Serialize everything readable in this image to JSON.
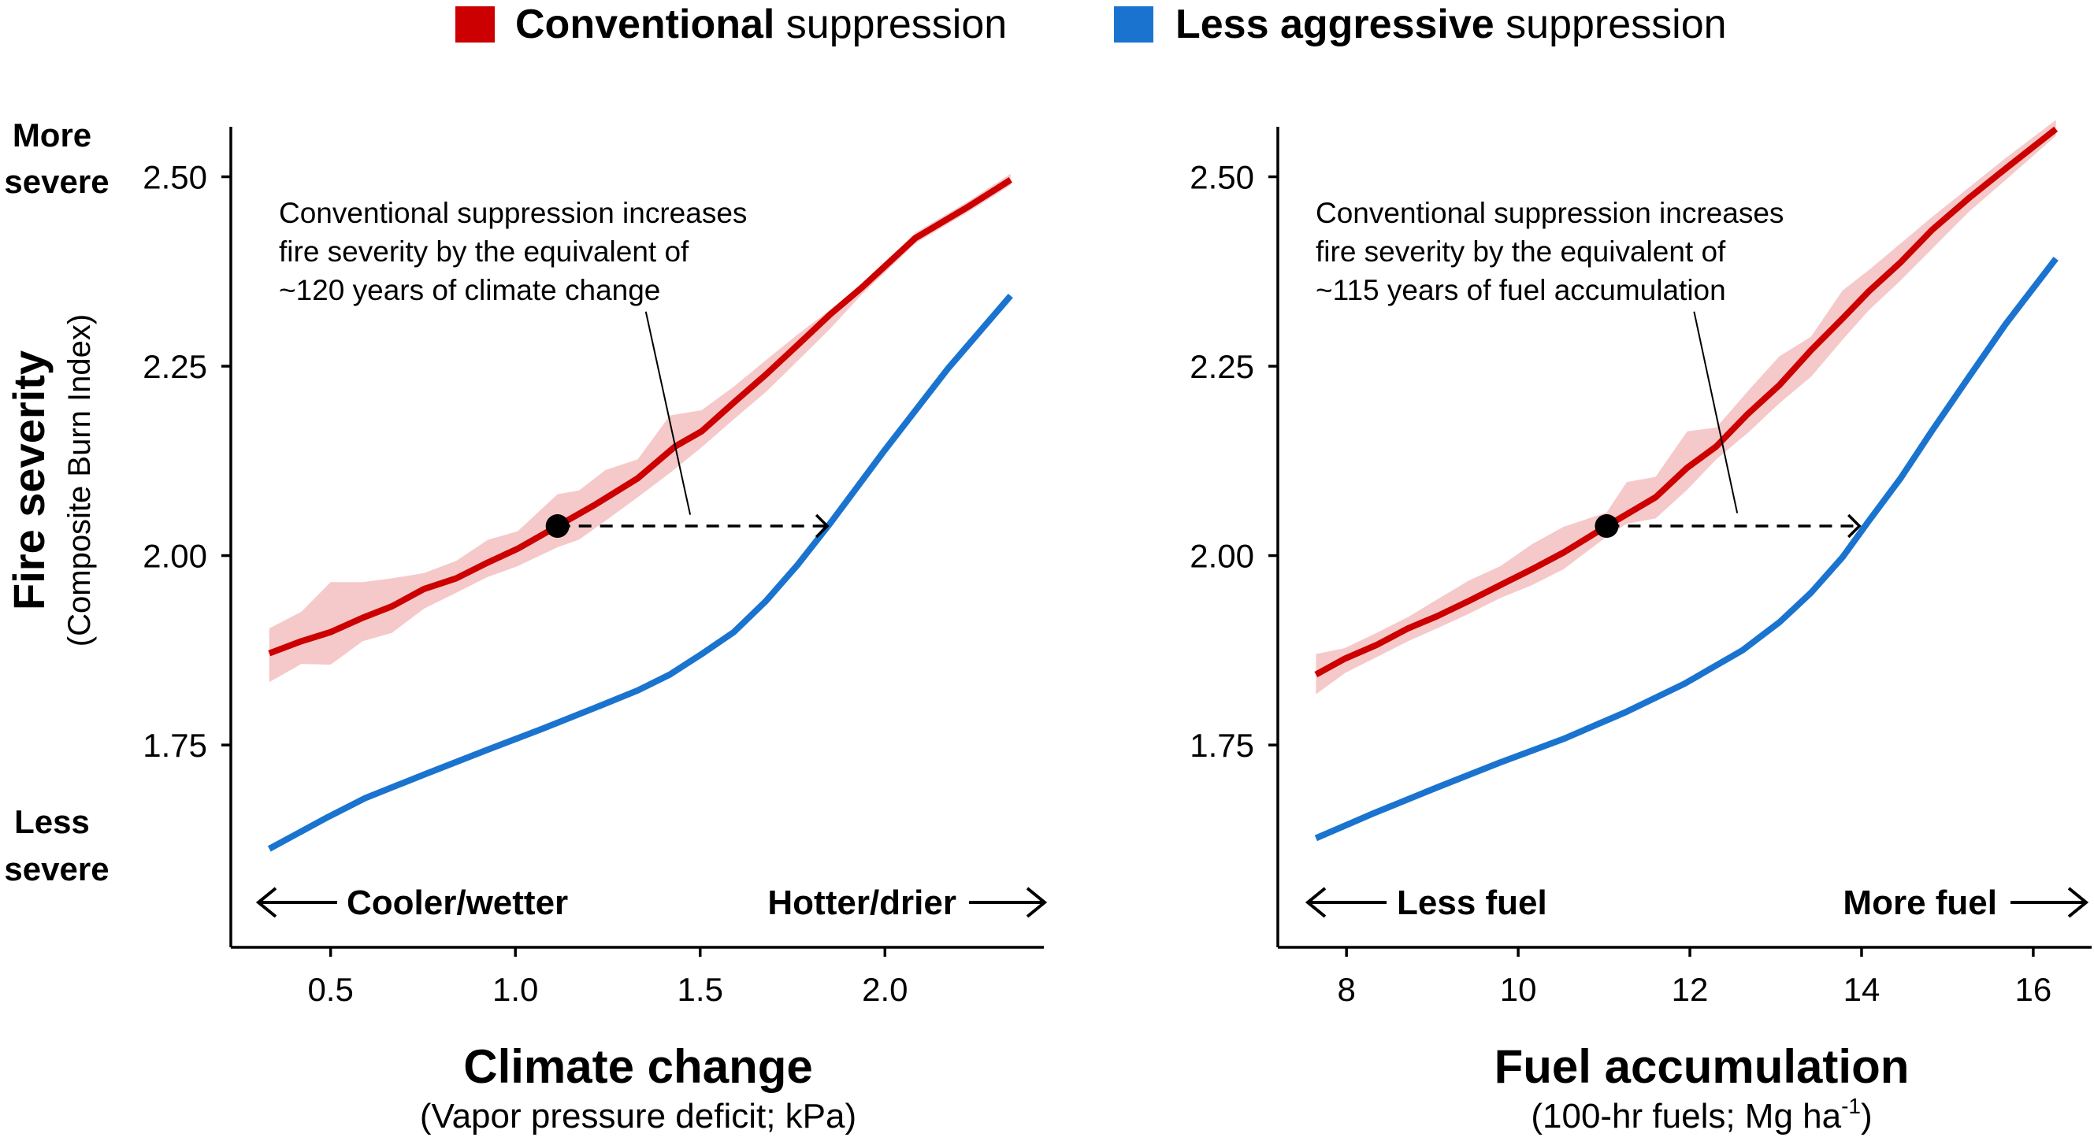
{
  "legend": {
    "items": [
      {
        "bold": "Conventional",
        "rest": " suppression",
        "color": "#cc0000"
      },
      {
        "bold": "Less aggressive",
        "rest": " suppression",
        "color": "#1a74cf"
      }
    ]
  },
  "y_labels": {
    "more": [
      "More",
      "severe"
    ],
    "less": [
      "Less",
      "severe"
    ],
    "title": "Fire severity",
    "subtitle": "(Composite Burn Index)"
  },
  "colors": {
    "band": "#f5c9c9",
    "red": "#cc0000",
    "blue": "#1a74cf",
    "ink": "#000000"
  },
  "chart_data": [
    {
      "type": "line",
      "xlabel": "Climate change",
      "xsublabel": "(Vapor pressure deficit; kPa)",
      "xlim": [
        0.23,
        2.43
      ],
      "ylim": [
        1.483,
        2.566
      ],
      "xticks": [
        0.5,
        1.0,
        1.5,
        2.0
      ],
      "xtick_labels": [
        "0.5",
        "1.0",
        "1.5",
        "2.0"
      ],
      "yticks": [
        1.75,
        2.0,
        2.25,
        2.5
      ],
      "ytick_labels": [
        "1.75",
        "2.00",
        "2.25",
        "2.50"
      ],
      "direction_labels": {
        "left": "Cooler/wetter",
        "right": "Hotter/drier"
      },
      "annotation": [
        "Conventional suppression increases",
        "fire severity by the equivalent of",
        "~120 years of climate change"
      ],
      "series": [
        {
          "name": "Conventional suppression",
          "color": "#cc0000",
          "x": [
            0.334,
            0.421,
            0.5,
            0.587,
            0.666,
            0.753,
            0.84,
            0.926,
            1.006,
            1.114,
            1.215,
            1.331,
            1.432,
            1.504,
            1.591,
            1.678,
            1.764,
            1.851,
            1.938,
            2.082,
            2.227,
            2.34
          ],
          "y": [
            1.871,
            1.887,
            1.899,
            1.918,
            1.933,
            1.956,
            1.97,
            1.991,
            2.009,
            2.039,
            2.067,
            2.102,
            2.144,
            2.164,
            2.202,
            2.239,
            2.278,
            2.318,
            2.354,
            2.419,
            2.461,
            2.496
          ],
          "band": {
            "x": [
              0.334,
              0.421,
              0.5,
              0.587,
              0.666,
              0.753,
              0.84,
              0.926,
              1.006,
              1.114,
              1.172,
              1.244,
              1.331,
              1.418,
              1.504,
              1.591,
              1.678,
              1.764,
              1.851,
              1.938,
              2.082,
              2.227,
              2.34
            ],
            "lower": [
              1.833,
              1.857,
              1.856,
              1.887,
              1.898,
              1.93,
              1.951,
              1.972,
              1.986,
              2.011,
              2.021,
              2.046,
              2.077,
              2.109,
              2.143,
              2.18,
              2.216,
              2.257,
              2.299,
              2.345,
              2.412,
              2.454,
              2.489
            ],
            "upper": [
              1.904,
              1.926,
              1.965,
              1.965,
              1.97,
              1.977,
              1.993,
              2.021,
              2.032,
              2.081,
              2.086,
              2.113,
              2.127,
              2.185,
              2.192,
              2.223,
              2.258,
              2.292,
              2.324,
              2.356,
              2.426,
              2.468,
              2.504
            ]
          }
        },
        {
          "name": "Less aggressive suppression",
          "color": "#1a74cf",
          "x": [
            0.334,
            0.493,
            0.594,
            0.753,
            0.926,
            1.071,
            1.215,
            1.331,
            1.418,
            1.504,
            1.591,
            1.678,
            1.764,
            1.851,
            1.996,
            2.169,
            2.34
          ],
          "y": [
            1.613,
            1.655,
            1.68,
            1.711,
            1.744,
            1.771,
            1.799,
            1.822,
            1.843,
            1.87,
            1.899,
            1.94,
            1.988,
            2.042,
            2.137,
            2.246,
            2.343
          ]
        }
      ],
      "marker": {
        "x": 1.114,
        "y": 2.039
      },
      "arrow_to_x": 1.844,
      "leader": {
        "from": [
          1.353,
          2.322
        ],
        "to": [
          1.473,
          2.054
        ]
      }
    },
    {
      "type": "line",
      "xlabel": "Fuel accumulation",
      "xsublabel_parts": [
        "(100-hr fuels; Mg ha",
        "-1",
        ")"
      ],
      "xlim": [
        7.2,
        16.68
      ],
      "ylim": [
        1.483,
        2.566
      ],
      "xticks": [
        8,
        10,
        12,
        14,
        16
      ],
      "xtick_labels": [
        "8",
        "10",
        "12",
        "14",
        "16"
      ],
      "yticks": [
        1.75,
        2.0,
        2.25,
        2.5
      ],
      "ytick_labels": [
        "1.75",
        "2.00",
        "2.25",
        "2.50"
      ],
      "direction_labels": {
        "left": "Less fuel",
        "right": "More fuel"
      },
      "annotation": [
        "Conventional suppression increases",
        "fire severity by the equivalent of",
        "~115 years of fuel accumulation"
      ],
      "series": [
        {
          "name": "Conventional suppression",
          "color": "#cc0000",
          "x": [
            7.644,
            7.982,
            8.35,
            8.718,
            9.055,
            9.423,
            9.791,
            10.16,
            10.528,
            11.031,
            11.601,
            11.969,
            12.307,
            12.675,
            13.043,
            13.411,
            13.779,
            14.086,
            14.454,
            14.822,
            15.252,
            15.681,
            16.264
          ],
          "y": [
            1.843,
            1.864,
            1.882,
            1.904,
            1.92,
            1.94,
            1.961,
            1.982,
            2.004,
            2.039,
            2.077,
            2.116,
            2.144,
            2.187,
            2.225,
            2.271,
            2.313,
            2.349,
            2.387,
            2.43,
            2.472,
            2.511,
            2.563
          ],
          "band": {
            "x": [
              7.644,
              7.982,
              8.35,
              8.718,
              9.055,
              9.423,
              9.791,
              10.16,
              10.528,
              11.031,
              11.264,
              11.601,
              11.969,
              12.307,
              12.675,
              13.043,
              13.411,
              13.779,
              14.086,
              14.454,
              14.822,
              15.252,
              15.681,
              16.264
            ],
            "lower": [
              1.817,
              1.845,
              1.866,
              1.887,
              1.904,
              1.923,
              1.944,
              1.961,
              1.982,
              2.025,
              2.042,
              2.049,
              2.087,
              2.127,
              2.162,
              2.201,
              2.236,
              2.285,
              2.324,
              2.363,
              2.405,
              2.454,
              2.496,
              2.554
            ],
            "upper": [
              1.87,
              1.878,
              1.898,
              1.919,
              1.942,
              1.967,
              1.986,
              2.015,
              2.038,
              2.057,
              2.097,
              2.104,
              2.164,
              2.169,
              2.217,
              2.263,
              2.289,
              2.35,
              2.377,
              2.412,
              2.447,
              2.486,
              2.525,
              2.575
            ]
          }
        },
        {
          "name": "Less aggressive suppression",
          "color": "#1a74cf",
          "x": [
            7.644,
            8.319,
            9.055,
            9.791,
            10.528,
            11.264,
            11.939,
            12.613,
            13.043,
            13.411,
            13.779,
            14.086,
            14.454,
            14.822,
            15.252,
            15.681,
            16.264
          ],
          "y": [
            1.627,
            1.66,
            1.694,
            1.727,
            1.758,
            1.794,
            1.831,
            1.875,
            1.912,
            1.951,
            1.998,
            2.046,
            2.102,
            2.165,
            2.236,
            2.306,
            2.392
          ]
        }
      ],
      "marker": {
        "x": 11.031,
        "y": 2.039
      },
      "arrow_to_x": 13.975,
      "leader": {
        "from": [
          12.049,
          2.322
        ],
        "to": [
          12.552,
          2.056
        ]
      }
    }
  ]
}
